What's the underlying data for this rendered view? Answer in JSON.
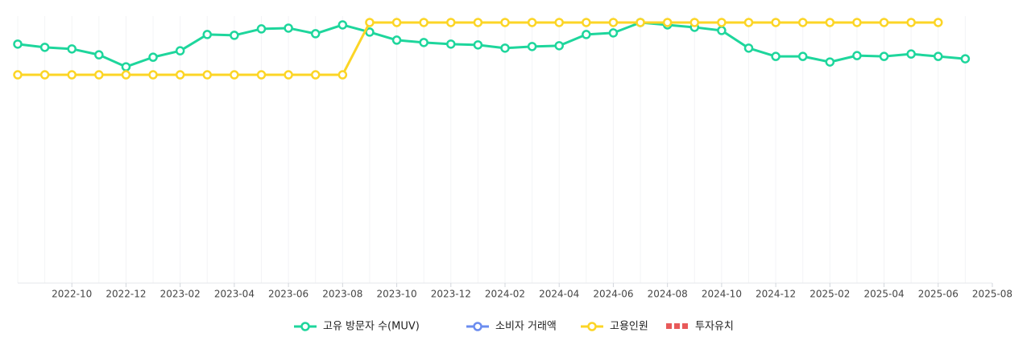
{
  "chart_data": {
    "type": "line",
    "x": [
      "2022-08",
      "2022-09",
      "2022-10",
      "2022-11",
      "2022-12",
      "2023-01",
      "2023-02",
      "2023-03",
      "2023-04",
      "2023-05",
      "2023-06",
      "2023-07",
      "2023-08",
      "2023-09",
      "2023-10",
      "2023-11",
      "2023-12",
      "2024-01",
      "2024-02",
      "2024-03",
      "2024-04",
      "2024-05",
      "2024-06",
      "2024-07",
      "2024-08",
      "2024-09",
      "2024-10",
      "2024-11",
      "2024-12",
      "2025-01",
      "2025-02",
      "2025-03",
      "2025-04",
      "2025-05",
      "2025-06",
      "2025-07"
    ],
    "xlim": [
      "2022-08",
      "2025-08"
    ],
    "xticks": [
      "2022-10",
      "2022-12",
      "2023-02",
      "2023-04",
      "2023-06",
      "2023-08",
      "2023-10",
      "2023-12",
      "2024-02",
      "2024-04",
      "2024-06",
      "2024-08",
      "2024-10",
      "2024-12",
      "2025-02",
      "2025-04",
      "2025-06",
      "2025-08"
    ],
    "ylim": [
      0,
      100
    ],
    "grid": true,
    "series": [
      {
        "name": "고유 방문자 수(MUV)",
        "color": "#1ed69c",
        "marker": "circle",
        "values": [
          89.5,
          88.3,
          87.7,
          85.5,
          81.0,
          84.6,
          87.0,
          93.1,
          92.8,
          95.2,
          95.5,
          93.4,
          96.7,
          94.0,
          91.0,
          90.1,
          89.5,
          89.2,
          88.0,
          88.6,
          88.9,
          93.1,
          93.7,
          97.6,
          96.7,
          95.8,
          94.6,
          88.0,
          84.9,
          84.9,
          82.8,
          85.2,
          84.9,
          85.8,
          84.9,
          84.0
        ]
      },
      {
        "name": "소비자 거래액",
        "color": "#6b8cef",
        "marker": "circle",
        "values": [
          null,
          null,
          null,
          null,
          null,
          null,
          null,
          null,
          null,
          null,
          null,
          null,
          null,
          null,
          null,
          null,
          null,
          null,
          null,
          null,
          null,
          null,
          null,
          null,
          null,
          null,
          null,
          null,
          null,
          null,
          null,
          null,
          null,
          null,
          null,
          null
        ]
      },
      {
        "name": "고용인원",
        "color": "#fcd526",
        "marker": "circle",
        "values": [
          78.0,
          78.0,
          78.0,
          78.0,
          78.0,
          78.0,
          78.0,
          78.0,
          78.0,
          78.0,
          78.0,
          78.0,
          78.0,
          97.6,
          97.6,
          97.6,
          97.6,
          97.6,
          97.6,
          97.6,
          97.6,
          97.6,
          97.6,
          97.6,
          97.6,
          97.6,
          97.6,
          97.6,
          97.6,
          97.6,
          97.6,
          97.6,
          97.6,
          97.6,
          97.6,
          null
        ]
      },
      {
        "name": "투자유치",
        "color": "#e85a5a",
        "marker": "square",
        "values": [
          null,
          null,
          null,
          null,
          null,
          null,
          null,
          null,
          null,
          null,
          null,
          null,
          null,
          null,
          null,
          null,
          null,
          null,
          null,
          null,
          null,
          null,
          null,
          null,
          null,
          null,
          null,
          null,
          null,
          null,
          null,
          null,
          null,
          null,
          null,
          null
        ]
      }
    ]
  }
}
